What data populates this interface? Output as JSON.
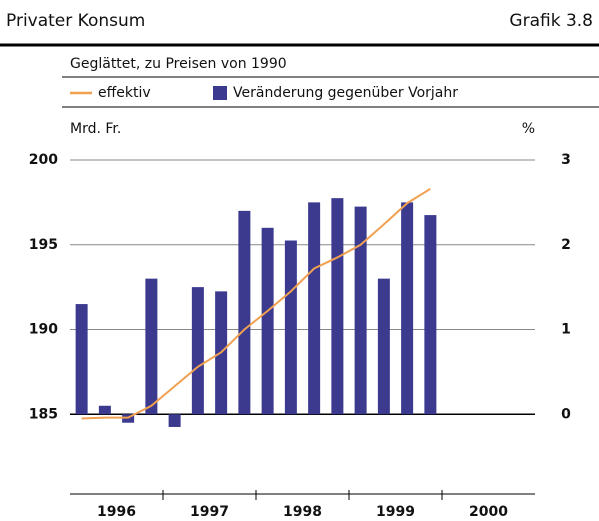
{
  "title": "Privater Konsum",
  "figure_label": "Grafik 3.8",
  "chart_data": {
    "type": "bar",
    "subtitle": "Geglättet, zu Preisen von 1990",
    "ylabel": "Mrd. Fr.",
    "y2label": "%",
    "categories": [
      null,
      null,
      null,
      null,
      null,
      null,
      null,
      null,
      null,
      null,
      null,
      null,
      null,
      null,
      null,
      null,
      null,
      null,
      null,
      null
    ],
    "year_labels": [
      "1996",
      "1997",
      "1998",
      "1999",
      "2000"
    ],
    "series": [
      {
        "name": "effektiv",
        "type": "line",
        "color": "#f0a050",
        "values": [
          184.75,
          184.8,
          184.8,
          185.5,
          186.65,
          187.8,
          188.65,
          190,
          191.1,
          192.25,
          193.6,
          194.25,
          195,
          196.2,
          197.45,
          198.3,
          null,
          null,
          null,
          null
        ]
      },
      {
        "name": "Veränderung gegenüber Vorjahr",
        "type": "bar",
        "axis": "y2",
        "color": "#3b3a8f",
        "values": [
          1.3,
          0.1,
          -0.1,
          1.6,
          -0.15,
          1.5,
          1.45,
          2.4,
          2.2,
          2.05,
          2.5,
          2.55,
          2.45,
          1.6,
          2.5,
          2.35,
          null,
          null,
          null,
          null
        ]
      }
    ],
    "ylim": [
      180,
      200
    ],
    "yticks": [
      185,
      190,
      195,
      200
    ],
    "y2lim": [
      -1,
      3
    ],
    "y2ticks": [
      0,
      1,
      2,
      3
    ],
    "grid": true
  }
}
